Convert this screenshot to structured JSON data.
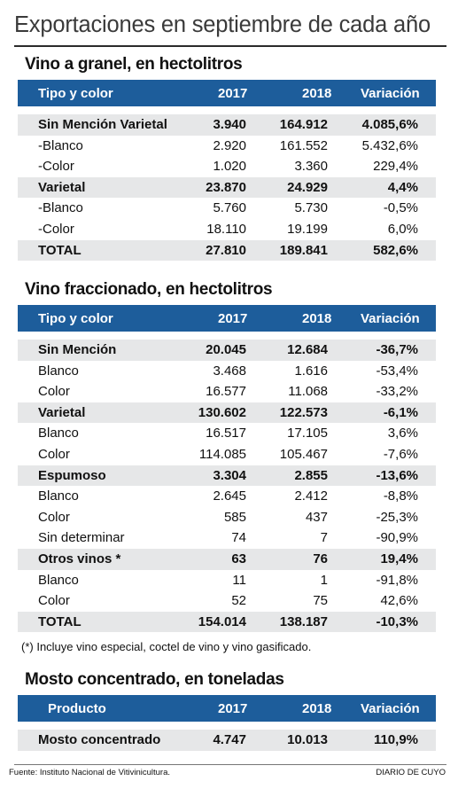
{
  "title": "Exportaciones en septiembre de cada año",
  "sections": [
    {
      "title": "Vino a granel, en hectolitros",
      "headers": [
        "Tipo  y color",
        "2017",
        "2018",
        "Variación"
      ],
      "rows": [
        {
          "label": "Sin Mención Varietal",
          "v2017": "3.940",
          "v2018": "164.912",
          "var": "4.085,6%",
          "bold": true,
          "shaded": true
        },
        {
          "label": "-Blanco",
          "v2017": "2.920",
          "v2018": "161.552",
          "var": "5.432,6%",
          "bold": false,
          "shaded": false
        },
        {
          "label": "-Color",
          "v2017": "1.020",
          "v2018": "3.360",
          "var": "229,4%",
          "bold": false,
          "shaded": false
        },
        {
          "label": "Varietal",
          "v2017": "23.870",
          "v2018": "24.929",
          "var": "4,4%",
          "bold": true,
          "shaded": true
        },
        {
          "label": "-Blanco",
          "v2017": "5.760",
          "v2018": "5.730",
          "var": "-0,5%",
          "bold": false,
          "shaded": false
        },
        {
          "label": "-Color",
          "v2017": "18.110",
          "v2018": "19.199",
          "var": "6,0%",
          "bold": false,
          "shaded": false
        },
        {
          "label": "TOTAL",
          "v2017": "27.810",
          "v2018": "189.841",
          "var": "582,6%",
          "bold": true,
          "shaded": true
        }
      ]
    },
    {
      "title": "Vino fraccionado, en hectolitros",
      "headers": [
        "Tipo  y color",
        "2017",
        "2018",
        "Variación"
      ],
      "rows": [
        {
          "label": "Sin Mención",
          "v2017": "20.045",
          "v2018": "12.684",
          "var": "-36,7%",
          "bold": true,
          "shaded": true
        },
        {
          "label": "Blanco",
          "v2017": "3.468",
          "v2018": "1.616",
          "var": "-53,4%",
          "bold": false,
          "shaded": false
        },
        {
          "label": "Color",
          "v2017": "16.577",
          "v2018": "11.068",
          "var": "-33,2%",
          "bold": false,
          "shaded": false
        },
        {
          "label": "Varietal",
          "v2017": "130.602",
          "v2018": "122.573",
          "var": "-6,1%",
          "bold": true,
          "shaded": true
        },
        {
          "label": "Blanco",
          "v2017": "16.517",
          "v2018": "17.105",
          "var": "3,6%",
          "bold": false,
          "shaded": false
        },
        {
          "label": "Color",
          "v2017": "114.085",
          "v2018": "105.467",
          "var": "-7,6%",
          "bold": false,
          "shaded": false
        },
        {
          "label": "Espumoso",
          "v2017": "3.304",
          "v2018": "2.855",
          "var": "-13,6%",
          "bold": true,
          "shaded": true
        },
        {
          "label": "Blanco",
          "v2017": "2.645",
          "v2018": "2.412",
          "var": "-8,8%",
          "bold": false,
          "shaded": false
        },
        {
          "label": "Color",
          "v2017": "585",
          "v2018": "437",
          "var": "-25,3%",
          "bold": false,
          "shaded": false
        },
        {
          "label": "Sin determinar",
          "v2017": "74",
          "v2018": "7",
          "var": "-90,9%",
          "bold": false,
          "shaded": false
        },
        {
          "label": "Otros vinos *",
          "v2017": "63",
          "v2018": "76",
          "var": "19,4%",
          "bold": true,
          "shaded": true
        },
        {
          "label": "Blanco",
          "v2017": "11",
          "v2018": "1",
          "var": "-91,8%",
          "bold": false,
          "shaded": false
        },
        {
          "label": "Color",
          "v2017": "52",
          "v2018": "75",
          "var": "42,6%",
          "bold": false,
          "shaded": false
        },
        {
          "label": "TOTAL",
          "v2017": "154.014",
          "v2018": "138.187",
          "var": "-10,3%",
          "bold": true,
          "shaded": true
        }
      ]
    },
    {
      "title": "Mosto concentrado, en toneladas",
      "headers": [
        "Producto",
        "2017",
        "2018",
        "Variación"
      ],
      "rows": [
        {
          "label": "Mosto concentrado",
          "v2017": "4.747",
          "v2018": "10.013",
          "var": "110,9%",
          "bold": true,
          "shaded": true
        }
      ]
    }
  ],
  "footnote": "(*) Incluye vino especial, coctel de vino y vino gasificado.",
  "source": "Fuente: Instituto Nacional de Vitivinicultura.",
  "brand": "DIARIO DE CUYO",
  "colors": {
    "header_bg": "#1d5d9b",
    "row_shade": "#e6e7e8",
    "title_text": "#3a3a3a"
  }
}
